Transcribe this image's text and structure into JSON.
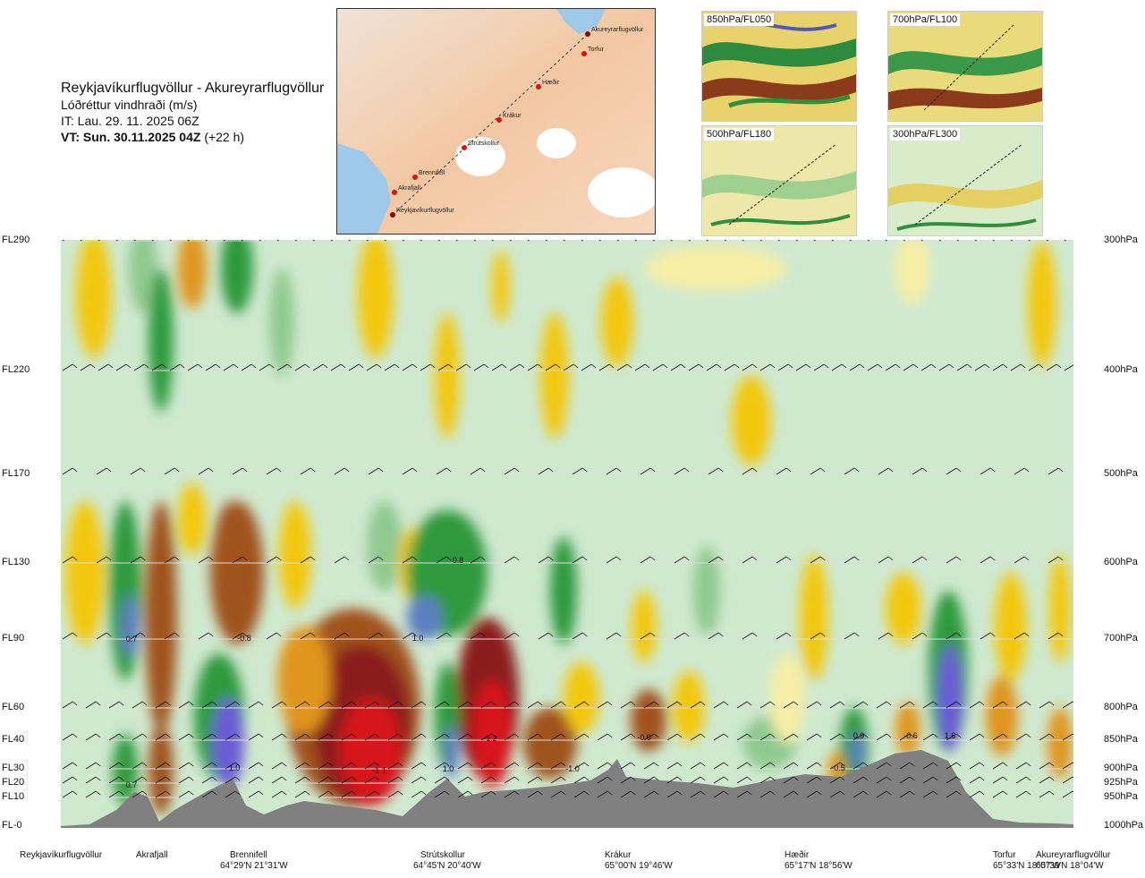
{
  "title": {
    "route": "Reykjavíkurflugvöllur - Akureyrarflugvöllur",
    "parameter": "Lóðréttur vindhraði (m/s)",
    "it": "IT: Lau. 29. 11. 2025 06Z",
    "vt": "VT: Sun. 30.11.2025 04Z",
    "vt_offset": "(+22 h)"
  },
  "map": {
    "waypoints": [
      "Akureyrarflugvöllur",
      "Torfur",
      "Hæðir",
      "Krákur",
      "Strútskollur",
      "Brennifell",
      "Akrafjall",
      "Reykjavíkurflugvöllur"
    ]
  },
  "mini_maps": [
    {
      "label": "850hPa/FL050"
    },
    {
      "label": "700hPa/FL100"
    },
    {
      "label": "500hPa/FL180"
    },
    {
      "label": "300hPa/FL300"
    }
  ],
  "left_axis": [
    "FL290",
    "FL220",
    "FL170",
    "FL130",
    "FL90",
    "FL60",
    "FL40",
    "FL30",
    "FL20",
    "FL10",
    "FL-0"
  ],
  "right_axis": [
    "300hPa",
    "400hPa",
    "500hPa",
    "600hPa",
    "700hPa",
    "800hPa",
    "850hPa",
    "900hPa",
    "925hPa",
    "950hPa",
    "1000hPa"
  ],
  "sites": [
    {
      "name": "Reykjavíkurflugvöllur",
      "coord": ""
    },
    {
      "name": "Akrafjall",
      "coord": ""
    },
    {
      "name": "Brennifell",
      "coord": "64°29'N 21°31'W"
    },
    {
      "name": "Strútskollur",
      "coord": "64°45'N 20°40'W"
    },
    {
      "name": "Krákur",
      "coord": "65°00'N 19°46'W"
    },
    {
      "name": "Hæðir",
      "coord": "65°17'N 18°56'W"
    },
    {
      "name": "Torfur",
      "coord": "65°33'N 18°07'W"
    },
    {
      "name": "Akureyrarflugvöllur",
      "coord": "65°39'N 18°04'W"
    }
  ],
  "chart_data": {
    "type": "heatmap",
    "title": "Lóðréttur vindhraði (m/s)",
    "xlabel": "",
    "ylabel": "",
    "x_categories": [
      "Reykjavíkurflugvöllur",
      "Akrafjall",
      "Brennifell",
      "Strútskollur",
      "Krákur",
      "Hæðir",
      "Torfur",
      "Akureyrarflugvöllur"
    ],
    "y_pressure_levels_hPa": [
      300,
      400,
      500,
      600,
      700,
      800,
      850,
      900,
      925,
      950,
      1000
    ],
    "y_flight_levels": [
      "FL290",
      "FL220",
      "FL170",
      "FL130",
      "FL90",
      "FL60",
      "FL40",
      "FL30",
      "FL20",
      "FL10",
      "FL-0"
    ],
    "labeled_values": [
      {
        "label": "0.7",
        "near": "Akrafjall",
        "level": "FL90"
      },
      {
        "label": "-0.8",
        "near": "Brennifell",
        "level": "FL90"
      },
      {
        "label": "0.8",
        "near": "Strútskollur",
        "level": "FL130"
      },
      {
        "label": "1.0",
        "near": "Strútskollur",
        "level": "FL90"
      },
      {
        "label": "0.7",
        "near": "Akrafjall",
        "level": "FL20"
      },
      {
        "label": "1.0",
        "near": "Brennifell",
        "level": "FL30"
      },
      {
        "label": "-1.1",
        "near": "Strútskollur",
        "level": "FL30"
      },
      {
        "label": "-1.2",
        "near": "Strútskollur",
        "level": "FL40"
      },
      {
        "label": "1.0",
        "near": "Strútskollur",
        "level": "FL30"
      },
      {
        "label": "-1.0",
        "near": "Krákur",
        "level": "FL30"
      },
      {
        "label": "-0.6",
        "near": "Krákur",
        "level": "FL40"
      },
      {
        "label": "-0.5",
        "near": "Hæðir",
        "level": "FL30"
      },
      {
        "label": "0.9",
        "near": "Hæðir",
        "level": "FL40"
      },
      {
        "label": "-0.6",
        "near": "Hæðir",
        "level": "FL40"
      },
      {
        "label": "1.6",
        "near": "Torfur",
        "level": "FL40"
      }
    ],
    "colors": {
      "strong_down": "#8b1a1a",
      "down_red": "#d7191c",
      "down_brown": "#a0521d",
      "down_orange": "#e0951e",
      "weak_down": "#f2c811",
      "near_zero_down": "#f6efa6",
      "near_zero_up": "#cfe9cf",
      "weak_up": "#8fc98f",
      "up_green": "#2e9a3e",
      "up_teal": "#1e7a3a",
      "strong_up_blue": "#5b7fbf",
      "strongest_up_violet": "#6a5bd6",
      "terrain": "#808080"
    },
    "grid": true,
    "legend": "none"
  }
}
